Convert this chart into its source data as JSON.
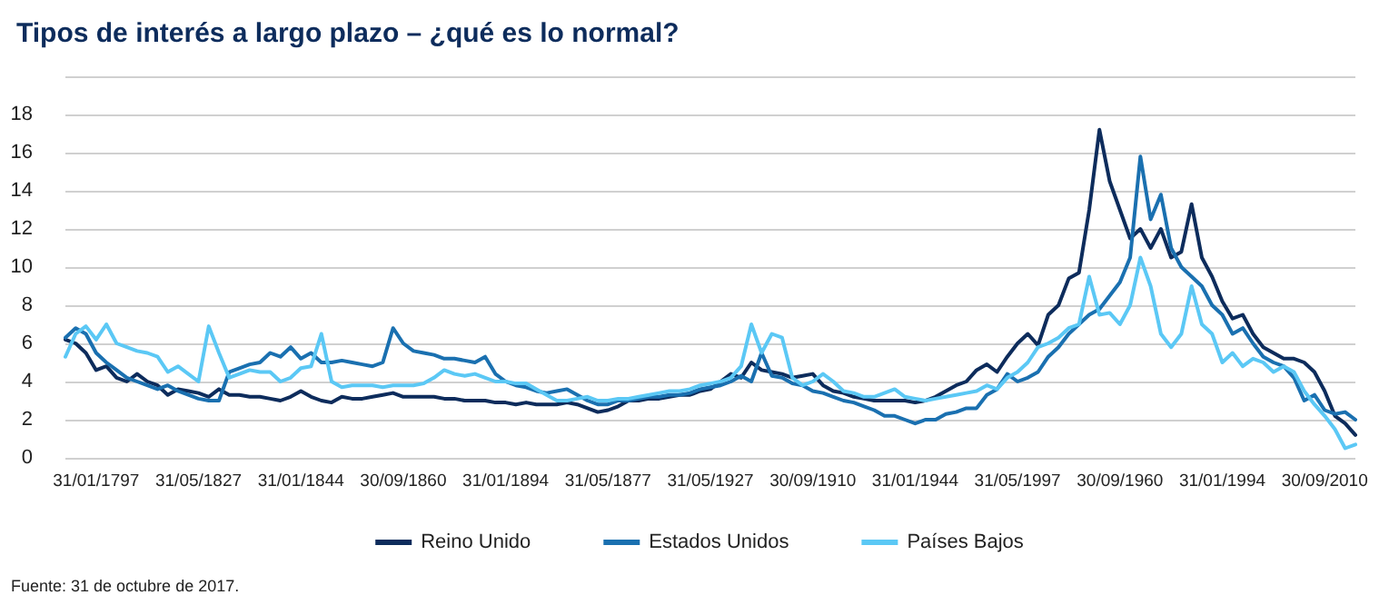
{
  "chart_data": {
    "type": "line",
    "title": "Tipos de interés a largo plazo – ¿qué es lo normal?",
    "categories": [
      null,
      null,
      null,
      "31/01/1797",
      null,
      null,
      null,
      null,
      null,
      null,
      null,
      null,
      null,
      "31/05/1827",
      null,
      null,
      null,
      null,
      null,
      null,
      null,
      null,
      null,
      "31/01/1844",
      null,
      null,
      null,
      null,
      null,
      null,
      null,
      null,
      null,
      "30/09/1860",
      null,
      null,
      null,
      null,
      null,
      null,
      null,
      null,
      null,
      "31/01/1894",
      null,
      null,
      null,
      null,
      null,
      null,
      null,
      null,
      null,
      "31/05/1877",
      null,
      null,
      null,
      null,
      null,
      null,
      null,
      null,
      null,
      "31/05/1927",
      null,
      null,
      null,
      null,
      null,
      null,
      null,
      null,
      null,
      "30/09/1910",
      null,
      null,
      null,
      null,
      null,
      null,
      null,
      null,
      null,
      "31/01/1944",
      null,
      null,
      null,
      null,
      null,
      null,
      null,
      null,
      null,
      "31/05/1997",
      null,
      null,
      null,
      null,
      null,
      null,
      null,
      null,
      null,
      "30/09/1960",
      null,
      null,
      null,
      null,
      null,
      null,
      null,
      null,
      null,
      "31/01/1994",
      null,
      null,
      null,
      null,
      null,
      null,
      null,
      null,
      null,
      "30/09/2010",
      null,
      null,
      null
    ],
    "series": [
      {
        "name": "Reino Unido",
        "color": "#0d2c5c",
        "values": [
          6.2,
          6.0,
          5.5,
          4.6,
          4.8,
          4.2,
          4.0,
          4.4,
          4.0,
          3.8,
          3.3,
          3.6,
          3.5,
          3.4,
          3.2,
          3.6,
          3.3,
          3.3,
          3.2,
          3.2,
          3.1,
          3.0,
          3.2,
          3.5,
          3.2,
          3.0,
          2.9,
          3.2,
          3.1,
          3.1,
          3.2,
          3.3,
          3.4,
          3.2,
          3.2,
          3.2,
          3.2,
          3.1,
          3.1,
          3.0,
          3.0,
          3.0,
          2.9,
          2.9,
          2.8,
          2.9,
          2.8,
          2.8,
          2.8,
          2.9,
          2.8,
          2.6,
          2.4,
          2.5,
          2.7,
          3.0,
          3.0,
          3.1,
          3.1,
          3.2,
          3.3,
          3.3,
          3.5,
          3.6,
          4.0,
          4.4,
          4.2,
          5.0,
          4.6,
          4.5,
          4.4,
          4.2,
          4.3,
          4.4,
          3.8,
          3.5,
          3.4,
          3.2,
          3.1,
          3.0,
          3.0,
          3.0,
          3.0,
          2.9,
          3.0,
          3.2,
          3.5,
          3.8,
          4.0,
          4.6,
          4.9,
          4.5,
          5.3,
          6.0,
          6.5,
          5.9,
          7.5,
          8.0,
          9.4,
          9.7,
          13.0,
          17.2,
          14.5,
          13.0,
          11.5,
          12.0,
          11.0,
          12.0,
          10.5,
          10.8,
          13.3,
          10.5,
          9.5,
          8.2,
          7.3,
          7.5,
          6.5,
          5.8,
          5.5,
          5.2,
          5.2,
          5.0,
          4.5,
          3.5,
          2.2,
          1.8,
          1.2
        ]
      },
      {
        "name": "Estados Unidos",
        "color": "#1a70b0",
        "values": [
          6.3,
          6.8,
          6.5,
          5.5,
          5.0,
          4.6,
          4.2,
          4.0,
          3.8,
          3.6,
          3.8,
          3.5,
          3.3,
          3.1,
          3.0,
          3.0,
          4.5,
          4.7,
          4.9,
          5.0,
          5.5,
          5.3,
          5.8,
          5.2,
          5.5,
          5.0,
          5.0,
          5.1,
          5.0,
          4.9,
          4.8,
          5.0,
          6.8,
          6.0,
          5.6,
          5.5,
          5.4,
          5.2,
          5.2,
          5.1,
          5.0,
          5.3,
          4.4,
          4.0,
          3.8,
          3.7,
          3.5,
          3.4,
          3.5,
          3.6,
          3.3,
          3.0,
          2.8,
          2.8,
          3.0,
          3.0,
          3.1,
          3.2,
          3.2,
          3.3,
          3.3,
          3.4,
          3.6,
          3.7,
          3.8,
          4.0,
          4.3,
          4.0,
          5.5,
          4.3,
          4.2,
          3.9,
          3.8,
          3.5,
          3.4,
          3.2,
          3.0,
          2.9,
          2.7,
          2.5,
          2.2,
          2.2,
          2.0,
          1.8,
          2.0,
          2.0,
          2.3,
          2.4,
          2.6,
          2.6,
          3.3,
          3.6,
          4.4,
          4.0,
          4.2,
          4.5,
          5.3,
          5.8,
          6.5,
          7.0,
          7.5,
          7.8,
          8.5,
          9.2,
          10.5,
          15.8,
          12.5,
          13.8,
          11.0,
          10.0,
          9.5,
          9.0,
          8.0,
          7.5,
          6.5,
          6.8,
          6.0,
          5.3,
          5.0,
          4.8,
          4.2,
          3.0,
          3.3,
          2.5,
          2.3,
          2.4,
          2.0
        ]
      },
      {
        "name": "Países Bajos",
        "color": "#5bc8f5",
        "values": [
          5.3,
          6.5,
          6.9,
          6.2,
          7.0,
          6.0,
          5.8,
          5.6,
          5.5,
          5.3,
          4.5,
          4.8,
          4.4,
          4.0,
          6.9,
          5.5,
          4.2,
          4.4,
          4.6,
          4.5,
          4.5,
          4.0,
          4.2,
          4.7,
          4.8,
          6.5,
          4.0,
          3.7,
          3.8,
          3.8,
          3.8,
          3.7,
          3.8,
          3.8,
          3.8,
          3.9,
          4.2,
          4.6,
          4.4,
          4.3,
          4.4,
          4.2,
          4.0,
          4.0,
          3.9,
          3.9,
          3.6,
          3.3,
          3.0,
          3.0,
          3.1,
          3.2,
          3.0,
          3.0,
          3.1,
          3.1,
          3.2,
          3.3,
          3.4,
          3.5,
          3.5,
          3.6,
          3.8,
          3.9,
          4.0,
          4.2,
          4.8,
          7.0,
          5.5,
          6.5,
          6.3,
          4.2,
          3.8,
          4.0,
          4.4,
          4.0,
          3.5,
          3.4,
          3.2,
          3.2,
          3.4,
          3.6,
          3.2,
          3.1,
          3.0,
          3.1,
          3.2,
          3.3,
          3.4,
          3.5,
          3.8,
          3.6,
          4.2,
          4.5,
          5.0,
          5.8,
          6.0,
          6.3,
          6.8,
          7.0,
          9.5,
          7.5,
          7.6,
          7.0,
          8.0,
          10.5,
          9.0,
          6.5,
          5.8,
          6.5,
          9.0,
          7.0,
          6.5,
          5.0,
          5.5,
          4.8,
          5.2,
          5.0,
          4.5,
          4.8,
          4.5,
          3.5,
          2.8,
          2.2,
          1.5,
          0.5,
          0.7
        ]
      }
    ],
    "ylim": [
      0,
      20
    ],
    "yticks": [
      0,
      2,
      4,
      6,
      8,
      10,
      12,
      14,
      16,
      18,
      {
        "value": 20,
        "label": null
      }
    ],
    "grid": "y",
    "legend": "bottom",
    "marker": "none",
    "line_style": "solid",
    "annotations": [
      "Fuente: 31 de octubre de 2017."
    ]
  }
}
